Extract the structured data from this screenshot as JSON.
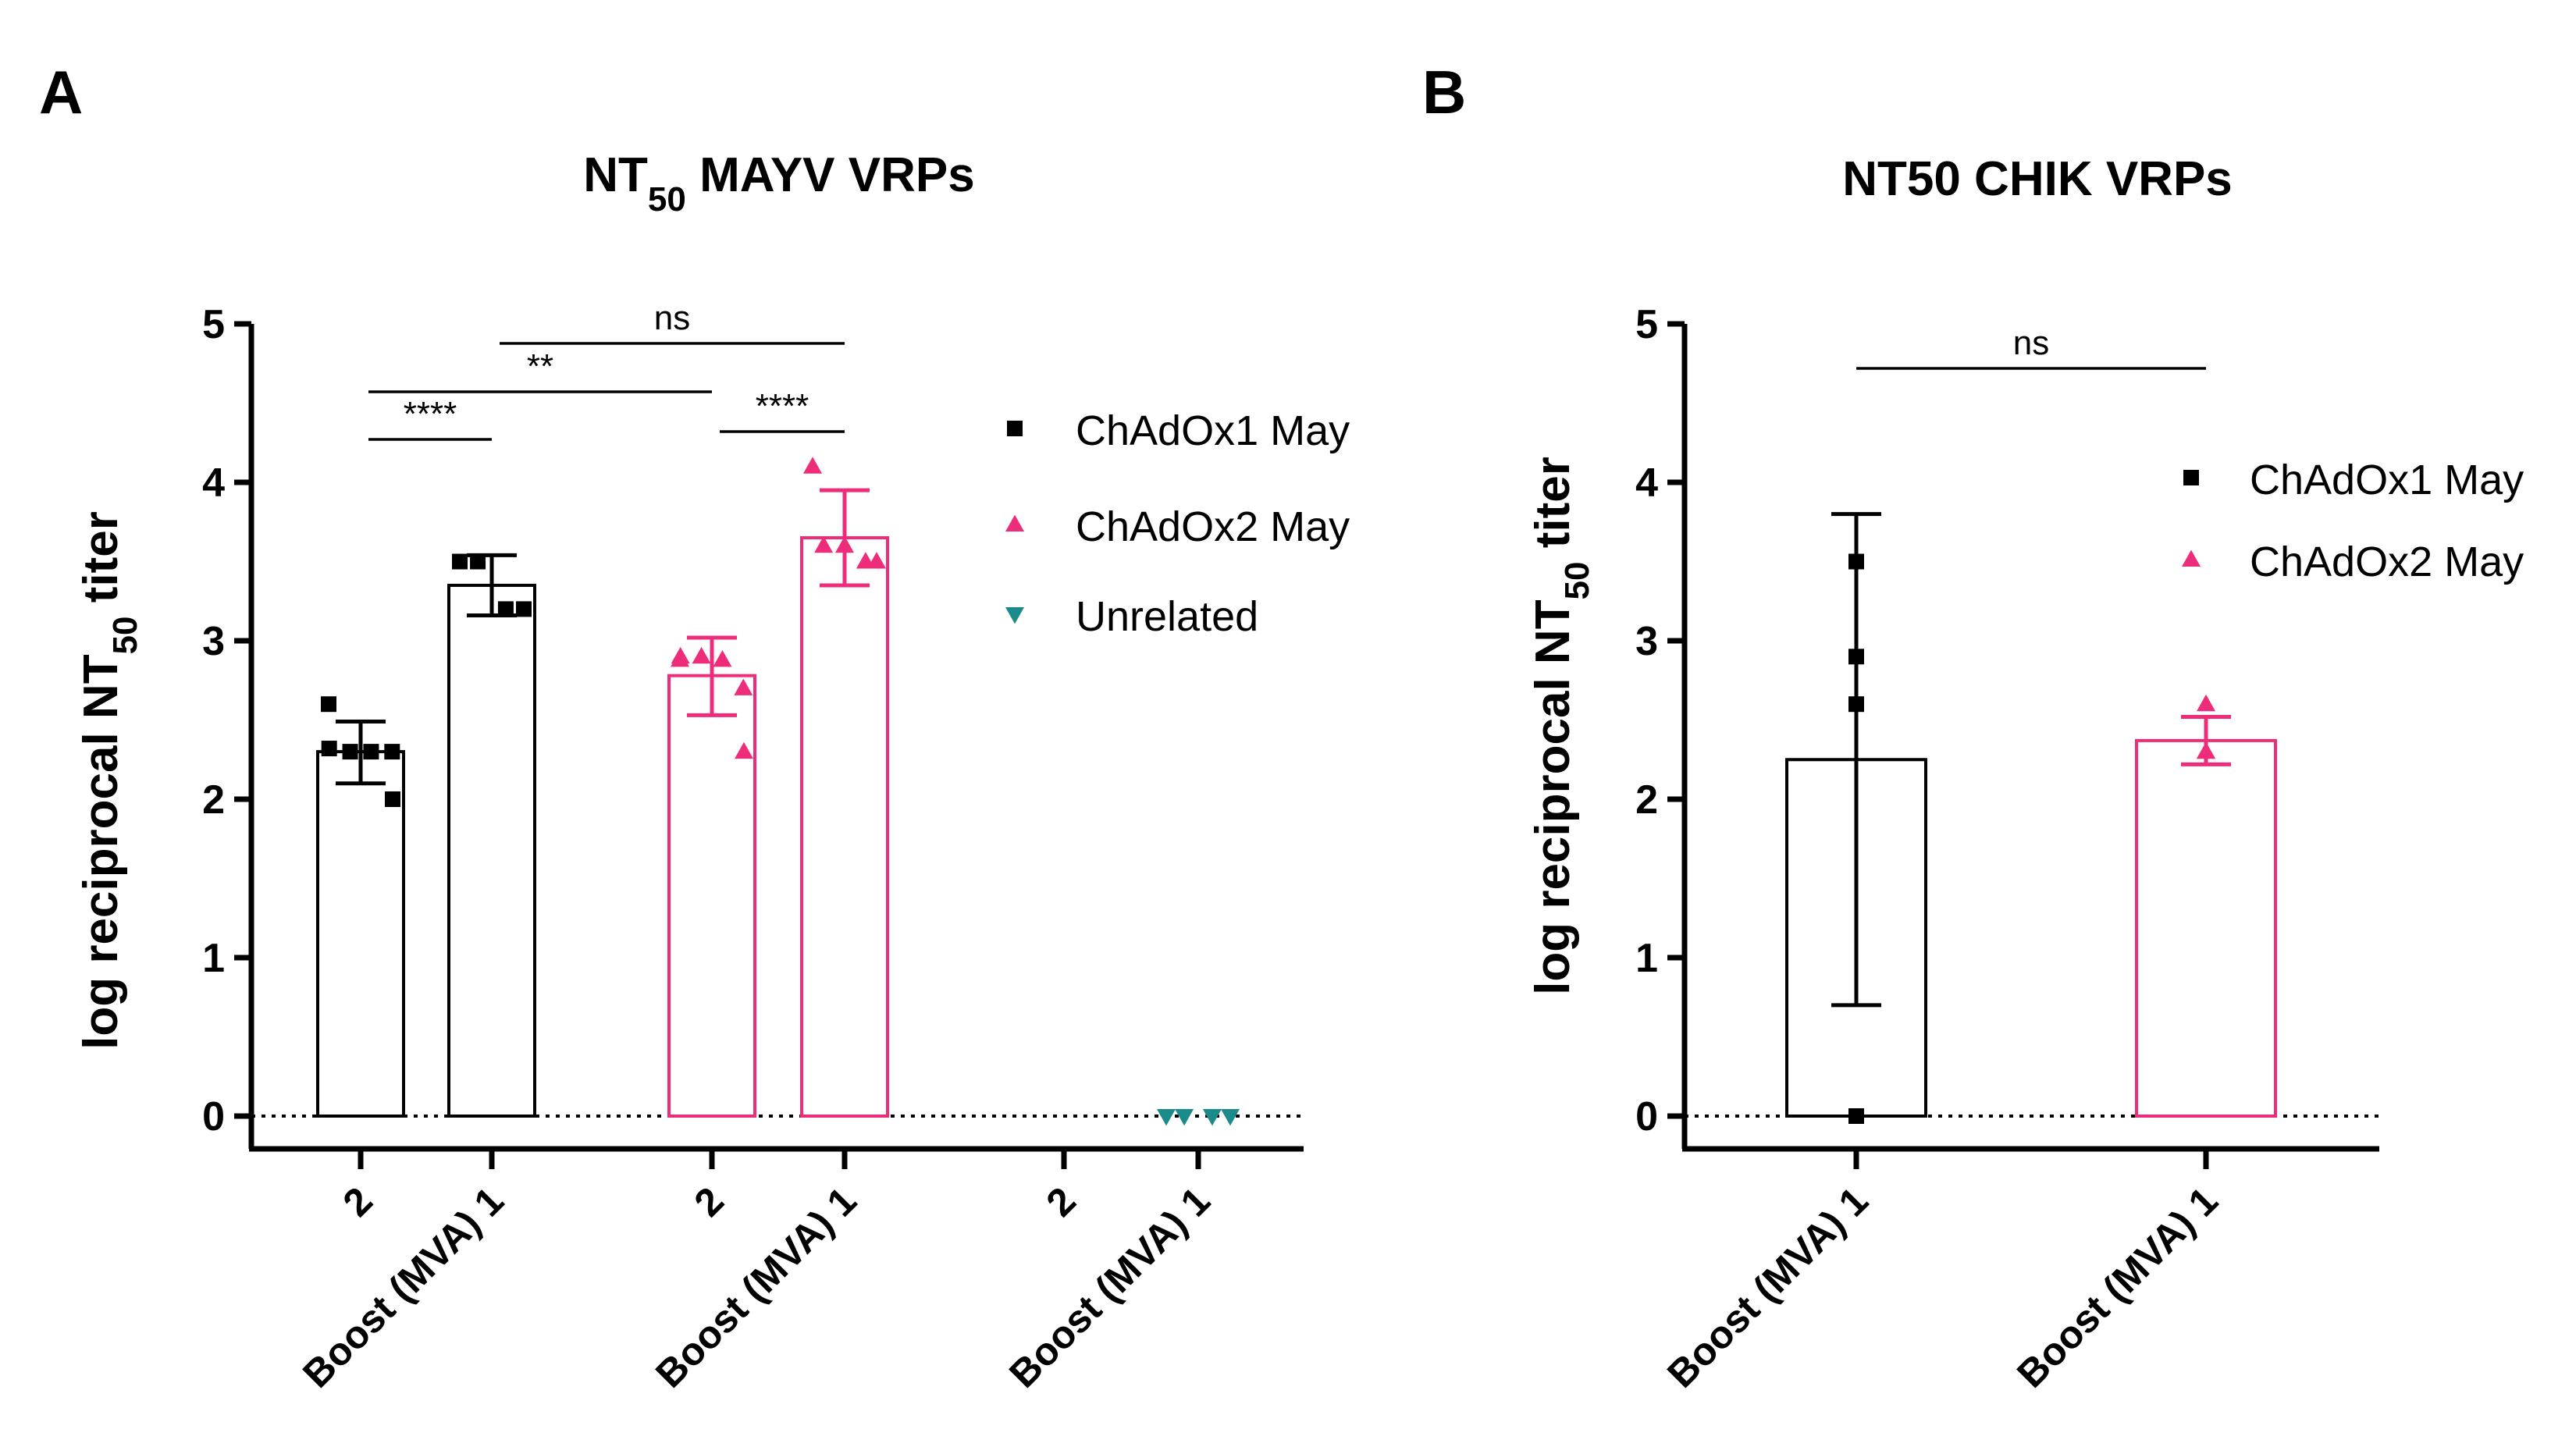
{
  "chart_data": [
    {
      "panel": "A",
      "type": "bar",
      "title": "NT50 MAYV VRPs",
      "ylabel": "log reciprocal NT50 titer",
      "ylim": [
        0,
        5
      ],
      "yticks": [
        "0",
        "1",
        "2",
        "3",
        "4",
        "5"
      ],
      "categories": [
        "2",
        "Boost (MVA) 1",
        "2",
        "Boost (MVA) 1",
        "2",
        "Boost (MVA) 1"
      ],
      "series": [
        {
          "name": "ChAdOx1 May",
          "color": "#000000",
          "marker": "square",
          "groups": [
            {
              "category_index": 0,
              "mean": 2.3,
              "error": [
                2.1,
                2.49
              ],
              "points": [
                2.6,
                2.32,
                2.3,
                2.3,
                2.3,
                2.0
              ]
            },
            {
              "category_index": 1,
              "mean": 3.35,
              "error": [
                3.16,
                3.54
              ],
              "points": [
                3.5,
                3.5,
                3.2,
                3.2
              ]
            }
          ]
        },
        {
          "name": "ChAdOx2 May",
          "color": "#ee2d7a",
          "marker": "triangle-up",
          "groups": [
            {
              "category_index": 2,
              "mean": 2.78,
              "error": [
                2.53,
                3.02
              ],
              "points": [
                2.88,
                2.9,
                2.9,
                2.88,
                2.7,
                2.3
              ]
            },
            {
              "category_index": 3,
              "mean": 3.65,
              "error": [
                3.35,
                3.95
              ],
              "points": [
                4.1,
                3.6,
                3.6,
                3.5,
                3.5
              ]
            }
          ]
        },
        {
          "name": "Unrelated",
          "color": "#1a8a8a",
          "marker": "triangle-down",
          "groups": [
            {
              "category_index": 5,
              "mean": 0,
              "error": null,
              "points": [
                0,
                0,
                0,
                0
              ]
            }
          ]
        }
      ],
      "comparisons": [
        {
          "label": "****",
          "from": 0,
          "to": 1
        },
        {
          "label": "**",
          "from": 0,
          "to": 2
        },
        {
          "label": "****",
          "from": 2,
          "to": 3
        },
        {
          "label": "ns",
          "from": 1,
          "to": 3
        }
      ],
      "reference_line": {
        "y": 0,
        "style": "dotted"
      },
      "legend": "right"
    },
    {
      "panel": "B",
      "type": "bar",
      "title": "NT50 CHIK VRPs",
      "ylabel": "log reciprocal NT50 titer",
      "ylim": [
        0,
        5
      ],
      "yticks": [
        "0",
        "1",
        "2",
        "3",
        "4",
        "5"
      ],
      "categories": [
        "Boost (MVA) 1",
        "Boost (MVA) 1"
      ],
      "series": [
        {
          "name": "ChAdOx1 May",
          "color": "#000000",
          "marker": "square",
          "groups": [
            {
              "category_index": 0,
              "mean": 2.25,
              "error": [
                0.7,
                3.8
              ],
              "points": [
                3.5,
                2.9,
                2.6,
                0
              ]
            }
          ]
        },
        {
          "name": "ChAdOx2 May",
          "color": "#ee2d7a",
          "marker": "triangle-up",
          "groups": [
            {
              "category_index": 1,
              "mean": 2.37,
              "error": [
                2.22,
                2.52
              ],
              "points": [
                2.6,
                2.3,
                2.3,
                2.3
              ]
            }
          ]
        }
      ],
      "comparisons": [
        {
          "label": "ns",
          "from": 0,
          "to": 1
        }
      ],
      "reference_line": {
        "y": 0,
        "style": "dotted"
      },
      "legend": "top-right"
    }
  ]
}
